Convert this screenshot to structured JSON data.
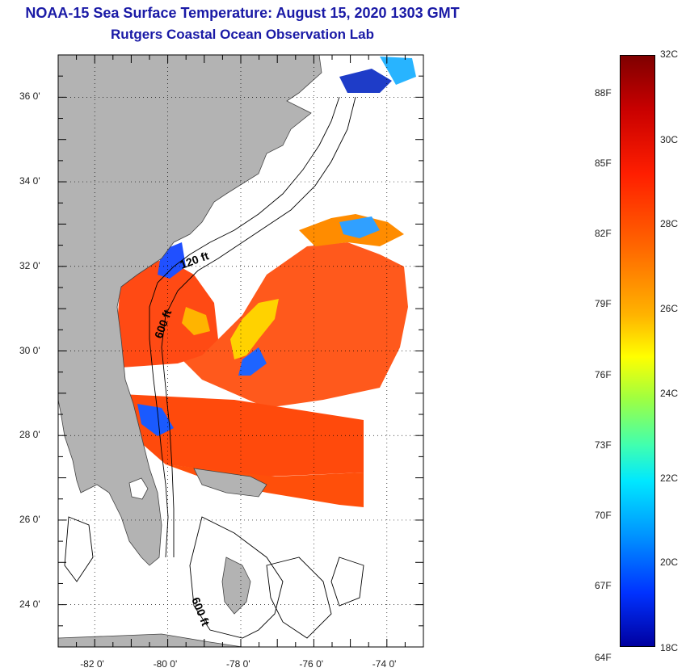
{
  "header": {
    "title": "NOAA-15 Sea Surface Temperature:  August 15, 2020 1303 GMT",
    "subtitle": "Rutgers Coastal Ocean Observation Lab"
  },
  "map": {
    "lon_range": [
      -83,
      -73
    ],
    "lat_range": [
      23,
      37
    ],
    "lon_ticks": [
      "-82 0'",
      "-80 0'",
      "-78 0'",
      "-76 0'",
      "-74 0'"
    ],
    "lat_ticks": [
      "36 0'",
      "34 0'",
      "32 0'",
      "30 0'",
      "28 0'",
      "26 0'",
      "24 0'"
    ],
    "contour_labels": [
      "120 ft",
      "600 ft",
      "600 ft"
    ],
    "land_color": "#b3b3b3"
  },
  "colorbar": {
    "celsius_labels": [
      "32C",
      "30C",
      "28C",
      "26C",
      "24C",
      "22C",
      "20C",
      "18C"
    ],
    "fahrenheit_labels": [
      "88F",
      "85F",
      "82F",
      "79F",
      "76F",
      "73F",
      "70F",
      "67F",
      "64F"
    ],
    "range_c": [
      18,
      32
    ]
  }
}
